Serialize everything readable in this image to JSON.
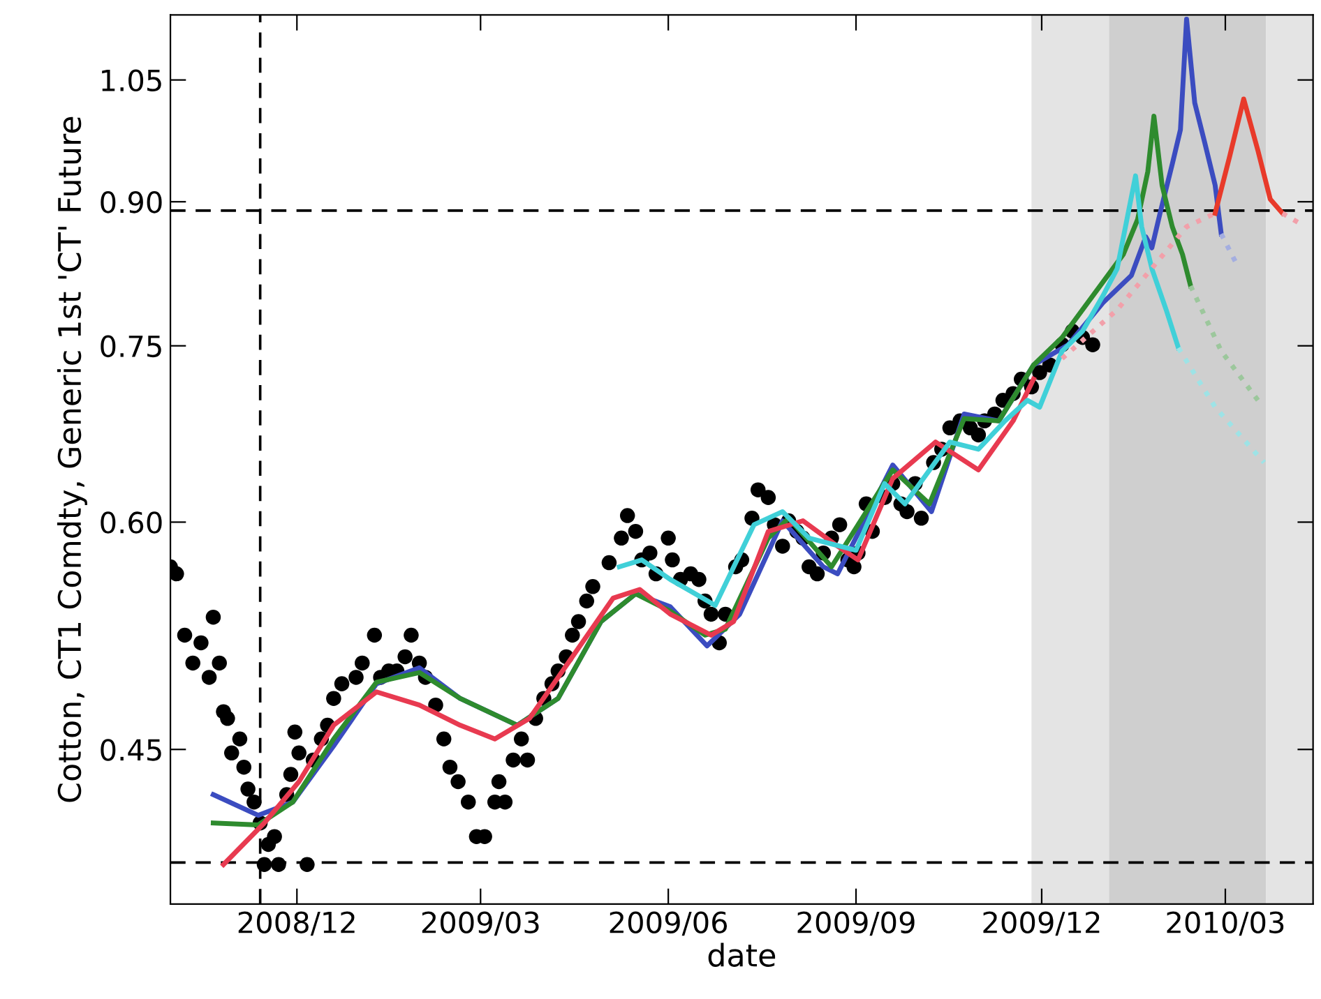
{
  "chart_data": {
    "type": "line",
    "xlabel": "date",
    "ylabel": "Cotton, CT1 Comdty, Generic 1st 'CT' Future",
    "log": "y",
    "grid": false,
    "legend": false,
    "xlim": [
      "2008-09-30",
      "2010-04-13"
    ],
    "xticks": [
      {
        "value": "2008-12-01",
        "label": "2008/12"
      },
      {
        "value": "2009-03-01",
        "label": "2009/03"
      },
      {
        "value": "2009-06-01",
        "label": "2009/06"
      },
      {
        "value": "2009-09-01",
        "label": "2009/09"
      },
      {
        "value": "2009-12-01",
        "label": "2009/12"
      },
      {
        "value": "2010-03-01",
        "label": "2010/03"
      }
    ],
    "ylim": [
      0.37,
      1.14
    ],
    "yticks": [
      {
        "value": 0.45,
        "label": "0.45"
      },
      {
        "value": 0.6,
        "label": "0.60"
      },
      {
        "value": 0.75,
        "label": "0.75"
      },
      {
        "value": 0.9,
        "label": "0.90"
      },
      {
        "value": 1.05,
        "label": "1.05"
      }
    ],
    "ref_lines": [
      {
        "axis": "x",
        "value": "2008-11-13",
        "color": "#000000",
        "line_style": "dashed"
      },
      {
        "axis": "y",
        "value": 0.89,
        "color": "#000000",
        "line_style": "dashed"
      },
      {
        "axis": "y",
        "value": 0.39,
        "color": "#000000",
        "line_style": "dashed"
      }
    ],
    "bands": [
      {
        "axis": "x",
        "from": "2009-11-26",
        "to": "2010-01-03",
        "color": "#e4e4e4"
      },
      {
        "axis": "x",
        "from": "2010-01-03",
        "to": "2010-03-21",
        "color": "#cfcfcf"
      },
      {
        "axis": "x",
        "from": "2010-03-21",
        "to": "2010-04-13",
        "color": "#e4e4e4"
      }
    ],
    "series": [
      {
        "type": "scatter",
        "marker": "circle",
        "color": "#000000",
        "x": [
          "2008-09-30",
          "2008-10-03",
          "2008-10-07",
          "2008-10-11",
          "2008-10-15",
          "2008-10-19",
          "2008-10-21",
          "2008-10-24",
          "2008-10-26",
          "2008-10-28",
          "2008-10-30",
          "2008-11-03",
          "2008-11-05",
          "2008-11-07",
          "2008-11-10",
          "2008-11-13",
          "2008-11-15",
          "2008-11-17",
          "2008-11-20",
          "2008-11-22",
          "2008-11-26",
          "2008-11-28",
          "2008-11-30",
          "2008-12-02",
          "2008-12-06",
          "2008-12-09",
          "2008-12-13",
          "2008-12-16",
          "2008-12-19",
          "2008-12-23",
          "2008-12-30",
          "2009-01-02",
          "2009-01-08",
          "2009-01-11",
          "2009-01-15",
          "2009-01-19",
          "2009-01-23",
          "2009-01-26",
          "2009-01-30",
          "2009-02-02",
          "2009-02-07",
          "2009-02-11",
          "2009-02-14",
          "2009-02-18",
          "2009-02-23",
          "2009-02-27",
          "2009-03-03",
          "2009-03-08",
          "2009-03-10",
          "2009-03-13",
          "2009-03-17",
          "2009-03-21",
          "2009-03-24",
          "2009-03-28",
          "2009-04-01",
          "2009-04-05",
          "2009-04-08",
          "2009-04-12",
          "2009-04-15",
          "2009-04-18",
          "2009-04-22",
          "2009-04-25",
          "2009-05-03",
          "2009-05-09",
          "2009-05-12",
          "2009-05-16",
          "2009-05-19",
          "2009-05-23",
          "2009-05-26",
          "2009-06-01",
          "2009-06-03",
          "2009-06-07",
          "2009-06-12",
          "2009-06-16",
          "2009-06-19",
          "2009-06-22",
          "2009-06-26",
          "2009-06-29",
          "2009-07-04",
          "2009-07-07",
          "2009-07-12",
          "2009-07-15",
          "2009-07-20",
          "2009-07-23",
          "2009-07-27",
          "2009-07-30",
          "2009-08-03",
          "2009-08-06",
          "2009-08-09",
          "2009-08-13",
          "2009-08-16",
          "2009-08-20",
          "2009-08-24",
          "2009-08-28",
          "2009-08-31",
          "2009-09-02",
          "2009-09-06",
          "2009-09-09",
          "2009-09-15",
          "2009-09-19",
          "2009-09-23",
          "2009-09-26",
          "2009-09-30",
          "2009-10-03",
          "2009-10-09",
          "2009-10-13",
          "2009-10-17",
          "2009-10-22",
          "2009-10-27",
          "2009-10-31",
          "2009-11-03",
          "2009-11-08",
          "2009-11-12",
          "2009-11-17",
          "2009-11-21",
          "2009-11-26",
          "2009-11-30",
          "2009-12-05",
          "2009-12-11",
          "2009-12-16",
          "2009-12-21",
          "2009-12-26"
        ],
        "values": [
          0.567,
          0.562,
          0.52,
          0.502,
          0.515,
          0.493,
          0.532,
          0.502,
          0.472,
          0.468,
          0.448,
          0.456,
          0.44,
          0.428,
          0.421,
          0.41,
          0.389,
          0.399,
          0.403,
          0.389,
          0.425,
          0.436,
          0.46,
          0.448,
          0.389,
          0.444,
          0.456,
          0.464,
          0.48,
          0.489,
          0.493,
          0.502,
          0.52,
          0.493,
          0.497,
          0.497,
          0.506,
          0.52,
          0.502,
          0.493,
          0.476,
          0.456,
          0.44,
          0.432,
          0.421,
          0.403,
          0.403,
          0.421,
          0.432,
          0.421,
          0.444,
          0.456,
          0.444,
          0.468,
          0.48,
          0.489,
          0.497,
          0.506,
          0.52,
          0.529,
          0.543,
          0.553,
          0.57,
          0.588,
          0.605,
          0.593,
          0.572,
          0.577,
          0.562,
          0.588,
          0.572,
          0.558,
          0.562,
          0.558,
          0.543,
          0.534,
          0.515,
          0.534,
          0.567,
          0.572,
          0.603,
          0.625,
          0.619,
          0.598,
          0.582,
          0.601,
          0.593,
          0.588,
          0.567,
          0.562,
          0.577,
          0.588,
          0.598,
          0.572,
          0.567,
          0.577,
          0.614,
          0.593,
          0.619,
          0.63,
          0.614,
          0.608,
          0.63,
          0.603,
          0.647,
          0.658,
          0.676,
          0.682,
          0.676,
          0.67,
          0.682,
          0.688,
          0.7,
          0.706,
          0.719,
          0.712,
          0.725,
          0.732,
          0.751,
          0.764,
          0.758,
          0.751
        ]
      },
      {
        "color": "#3b4cc0",
        "line_style": "solid",
        "x": [
          "2008-10-21",
          "2008-11-12",
          "2008-11-29",
          "2008-12-19",
          "2009-01-09",
          "2009-01-30",
          "2009-02-19",
          "2009-03-19",
          "2009-04-08",
          "2009-04-29",
          "2009-05-16",
          "2009-06-02",
          "2009-06-20",
          "2009-07-06",
          "2009-07-27",
          "2009-08-16",
          "2009-08-23",
          "2009-09-19",
          "2009-10-08",
          "2009-10-24",
          "2009-11-10",
          "2009-11-27",
          "2009-12-14",
          "2009-12-31",
          "2010-01-14",
          "2010-01-21",
          "2010-01-24",
          "2010-01-28",
          "2010-02-03",
          "2010-02-07",
          "2010-02-10",
          "2010-02-14",
          "2010-02-19",
          "2010-02-24",
          "2010-02-27"
        ],
        "values": [
          0.425,
          0.414,
          0.421,
          0.452,
          0.489,
          0.499,
          0.48,
          0.464,
          0.48,
          0.529,
          0.548,
          0.539,
          0.513,
          0.534,
          0.601,
          0.567,
          0.562,
          0.645,
          0.608,
          0.688,
          0.682,
          0.732,
          0.751,
          0.792,
          0.82,
          0.861,
          0.849,
          0.887,
          0.944,
          0.986,
          1.134,
          1.02,
          0.969,
          0.919,
          0.864
        ]
      },
      {
        "color": "#2e8b2e",
        "line_style": "solid",
        "x": [
          "2008-10-21",
          "2008-11-12",
          "2008-11-29",
          "2008-12-19",
          "2009-01-09",
          "2009-01-30",
          "2009-02-19",
          "2009-03-19",
          "2009-04-08",
          "2009-04-29",
          "2009-05-16",
          "2009-06-02",
          "2009-06-19",
          "2009-06-29",
          "2009-07-20",
          "2009-07-30",
          "2009-08-20",
          "2009-09-19",
          "2009-10-07",
          "2009-10-24",
          "2009-11-10",
          "2009-11-27",
          "2009-12-11",
          "2009-12-31",
          "2010-01-10",
          "2010-01-17",
          "2010-01-22",
          "2010-01-25",
          "2010-01-29",
          "2010-02-03",
          "2010-02-08",
          "2010-02-12"
        ],
        "values": [
          0.41,
          0.409,
          0.421,
          0.456,
          0.49,
          0.496,
          0.48,
          0.464,
          0.48,
          0.529,
          0.548,
          0.536,
          0.52,
          0.524,
          0.588,
          0.603,
          0.567,
          0.641,
          0.614,
          0.684,
          0.682,
          0.732,
          0.758,
          0.813,
          0.842,
          0.88,
          0.935,
          1.003,
          0.919,
          0.872,
          0.842,
          0.809
        ]
      },
      {
        "color": "#e83a50",
        "line_style": "solid",
        "x": [
          "2008-10-26",
          "2008-11-15",
          "2008-12-02",
          "2008-12-19",
          "2009-01-09",
          "2009-01-30",
          "2009-02-19",
          "2009-03-08",
          "2009-03-25",
          "2009-04-15",
          "2009-05-05",
          "2009-05-18",
          "2009-06-02",
          "2009-06-22",
          "2009-07-03",
          "2009-07-20",
          "2009-08-06",
          "2009-08-23",
          "2009-09-02",
          "2009-09-19",
          "2009-10-10",
          "2009-10-31",
          "2009-11-17",
          "2009-11-27"
        ],
        "values": [
          0.389,
          0.41,
          0.432,
          0.464,
          0.484,
          0.476,
          0.464,
          0.456,
          0.468,
          0.506,
          0.545,
          0.551,
          0.534,
          0.52,
          0.529,
          0.593,
          0.601,
          0.582,
          0.572,
          0.634,
          0.664,
          0.641,
          0.682,
          0.719
        ]
      },
      {
        "color": "#e83a2a",
        "line_style": "solid",
        "x": [
          "2010-02-24",
          "2010-03-03",
          "2010-03-10",
          "2010-03-17",
          "2010-03-23",
          "2010-03-29"
        ],
        "values": [
          0.887,
          0.952,
          1.025,
          0.96,
          0.903,
          0.887
        ]
      },
      {
        "color": "#40d0d8",
        "line_style": "solid",
        "x": [
          "2009-05-08",
          "2009-05-19",
          "2009-06-02",
          "2009-06-24",
          "2009-07-13",
          "2009-07-27",
          "2009-08-09",
          "2009-09-01",
          "2009-09-15",
          "2009-09-25",
          "2009-10-17",
          "2009-10-31",
          "2009-11-13",
          "2009-11-24",
          "2009-11-30",
          "2009-12-11",
          "2009-12-21",
          "2009-12-31",
          "2010-01-07",
          "2010-01-16",
          "2010-01-19",
          "2010-01-24",
          "2010-01-31",
          "2010-02-06"
        ],
        "values": [
          0.567,
          0.572,
          0.558,
          0.54,
          0.598,
          0.608,
          0.588,
          0.579,
          0.63,
          0.614,
          0.664,
          0.658,
          0.682,
          0.7,
          0.694,
          0.745,
          0.764,
          0.799,
          0.827,
          0.93,
          0.872,
          0.827,
          0.785,
          0.748
        ]
      },
      {
        "color": "#9ee3e6",
        "line_style": "dotted",
        "x": [
          "2010-02-06",
          "2010-02-24",
          "2010-03-20"
        ],
        "values": [
          0.748,
          0.694,
          0.647
        ]
      },
      {
        "color": "#9cc79c",
        "line_style": "dotted",
        "x": [
          "2010-02-12",
          "2010-02-27",
          "2010-03-17"
        ],
        "values": [
          0.809,
          0.745,
          0.7
        ]
      },
      {
        "color": "#a4aee0",
        "line_style": "dotted",
        "x": [
          "2010-02-27",
          "2010-03-06"
        ],
        "values": [
          0.864,
          0.834
        ]
      },
      {
        "color": "#f2a0aa",
        "line_style": "dotted",
        "x": [
          "2009-12-11",
          "2010-01-07",
          "2010-02-10",
          "2010-02-24"
        ],
        "values": [
          0.738,
          0.785,
          0.872,
          0.887
        ]
      },
      {
        "color": "#f2a0aa",
        "line_style": "dotted",
        "x": [
          "2010-03-29",
          "2010-04-07"
        ],
        "values": [
          0.887,
          0.875
        ]
      }
    ]
  }
}
